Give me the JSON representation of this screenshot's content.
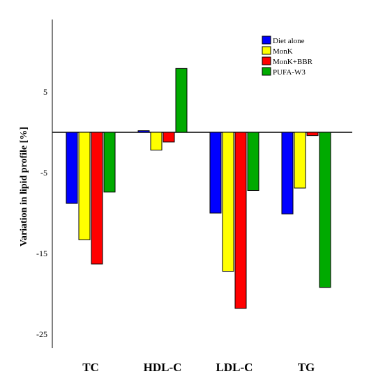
{
  "chart_data": {
    "type": "bar",
    "title": "",
    "xlabel": "",
    "ylabel": "Variation in lipid profile [%]",
    "categories": [
      "TC",
      "HDL-C",
      "LDL-C",
      "TG"
    ],
    "ylim": [
      -27,
      14
    ],
    "yticks": [
      5,
      -5,
      -15,
      -25
    ],
    "grid": false,
    "legend_position": "top-right",
    "series": [
      {
        "name": "Diet alone",
        "color": "#0000ff",
        "values": [
          -8.8,
          0.2,
          -10.0,
          -10.1
        ]
      },
      {
        "name": "MonK",
        "color": "#ffff00",
        "values": [
          -13.3,
          -2.2,
          -17.2,
          -6.9
        ]
      },
      {
        "name": "MonK+BBR",
        "color": "#ff0000",
        "values": [
          -16.3,
          -1.2,
          -21.8,
          -0.4
        ]
      },
      {
        "name": "PUFA-W3",
        "color": "#00aa00",
        "values": [
          -7.4,
          7.9,
          -7.2,
          -19.2
        ]
      }
    ]
  }
}
